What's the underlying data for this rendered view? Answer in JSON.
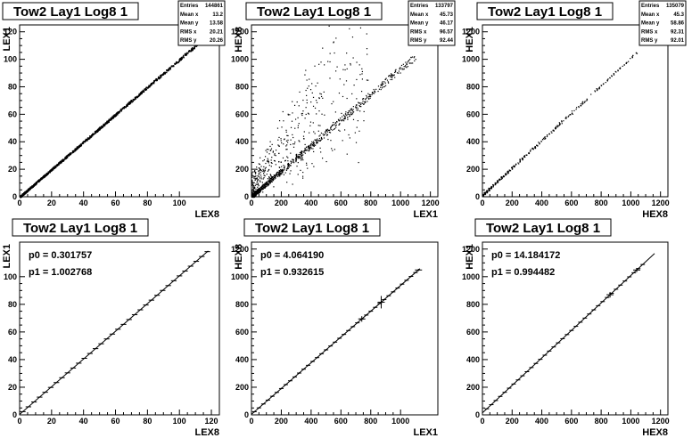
{
  "canvas": {
    "background": "#ffffff",
    "frame_color": "#000000",
    "title_bg": "#ffffff"
  },
  "chart_data": [
    {
      "type": "scatter",
      "title": "Tow2 Lay1 Log8 1",
      "xlabel": "LEX8",
      "ylabel": "LEX1",
      "xlim": [
        0,
        125
      ],
      "ylim": [
        0,
        125
      ],
      "xticks": [
        0,
        20,
        40,
        60,
        80,
        100
      ],
      "yticks": [
        0,
        20,
        40,
        60,
        80,
        100,
        120
      ],
      "stats": [
        {
          "label": "Entries",
          "value": "144861"
        },
        {
          "label": "Mean x",
          "value": "13.2"
        },
        {
          "label": "Mean y",
          "value": "13.58"
        },
        {
          "label": "RMS x",
          "value": "20.21"
        },
        {
          "label": "RMS y",
          "value": "20.26"
        }
      ],
      "distribution": {
        "slope": 1.0,
        "intercept": 0.3,
        "x_range": [
          0,
          115
        ],
        "spread": 0.6,
        "outlier_fraction": 0.0,
        "density": "dense-diagonal"
      }
    },
    {
      "type": "scatter",
      "title": "Tow2 Lay1 Log8 1",
      "xlabel": "LEX1",
      "ylabel": "HEX8",
      "xlim": [
        0,
        1250
      ],
      "ylim": [
        0,
        1250
      ],
      "xticks": [
        0,
        200,
        400,
        600,
        800,
        1000,
        1200
      ],
      "yticks": [
        0,
        200,
        400,
        600,
        800,
        1000,
        1200
      ],
      "stats": [
        {
          "label": "Entries",
          "value": "133797"
        },
        {
          "label": "Mean x",
          "value": "45.73"
        },
        {
          "label": "Mean y",
          "value": "46.17"
        },
        {
          "label": "RMS x",
          "value": "96.57"
        },
        {
          "label": "RMS y",
          "value": "92.44"
        }
      ],
      "distribution": {
        "slope": 0.93,
        "intercept": 4,
        "x_range": [
          0,
          1100
        ],
        "spread": 18,
        "outlier_fraction": 0.35,
        "density": "diagonal-with-scatter"
      }
    },
    {
      "type": "scatter",
      "title": "Tow2 Lay1 Log8 1",
      "xlabel": "HEX8",
      "ylabel": "HEX1",
      "xlim": [
        0,
        1250
      ],
      "ylim": [
        0,
        1250
      ],
      "xticks": [
        0,
        200,
        400,
        600,
        800,
        1000,
        1200
      ],
      "yticks": [
        0,
        200,
        400,
        600,
        800,
        1000,
        1200
      ],
      "stats": [
        {
          "label": "Entries",
          "value": "135079"
        },
        {
          "label": "Mean x",
          "value": "45.3"
        },
        {
          "label": "Mean y",
          "value": "58.86"
        },
        {
          "label": "RMS x",
          "value": "92.31"
        },
        {
          "label": "RMS y",
          "value": "92.01"
        }
      ],
      "distribution": {
        "slope": 1.0,
        "intercept": 14,
        "x_range": [
          0,
          1050
        ],
        "spread": 4,
        "outlier_fraction": 0.0,
        "density": "banded-diagonal"
      }
    },
    {
      "type": "line",
      "title": "Tow2 Lay1 Log8 1",
      "xlabel": "LEX8",
      "ylabel": "LEX1",
      "xlim": [
        0,
        125
      ],
      "ylim": [
        0,
        125
      ],
      "xticks": [
        0,
        20,
        40,
        60,
        80,
        100,
        120
      ],
      "yticks": [
        0,
        20,
        40,
        60,
        80,
        100
      ],
      "fit": {
        "p0_label": "p0 = 0.301757",
        "p1_label": "p1 = 1.002768",
        "p0": 0.301757,
        "p1": 1.002768,
        "x_range": [
          0,
          118
        ]
      },
      "profile": {
        "x_start": 2,
        "x_end": 118,
        "step": 3.5,
        "err": 0.3,
        "big_errors": []
      }
    },
    {
      "type": "line",
      "title": "Tow2 Lay1 Log8 1",
      "xlabel": "LEX1",
      "ylabel": "HEX8",
      "xlim": [
        0,
        1250
      ],
      "ylim": [
        0,
        1250
      ],
      "xticks": [
        0,
        200,
        400,
        600,
        800,
        1000
      ],
      "yticks": [
        0,
        200,
        400,
        600,
        800,
        1000,
        1200
      ],
      "fit": {
        "p0_label": "p0 = 4.064190",
        "p1_label": "p1 = 0.932615",
        "p0": 4.06419,
        "p1": 0.932615,
        "x_range": [
          0,
          1130
        ]
      },
      "profile": {
        "x_start": 20,
        "x_end": 1120,
        "step": 30,
        "err": 5,
        "big_errors": [
          [
            740,
            20
          ],
          [
            870,
            45
          ],
          [
            1120,
            8
          ]
        ]
      }
    },
    {
      "type": "line",
      "title": "Tow2 Lay1 Log8 1",
      "xlabel": "HEX8",
      "ylabel": "HEX1",
      "xlim": [
        0,
        1250
      ],
      "ylim": [
        0,
        1250
      ],
      "xticks": [
        0,
        200,
        400,
        600,
        800,
        1000,
        1200
      ],
      "yticks": [
        0,
        200,
        400,
        600,
        800,
        1000,
        1200
      ],
      "fit": {
        "p0_label": "p0 = 14.184172",
        "p1_label": "p1 = 0.994482",
        "p0": 14.184172,
        "p1": 0.994482,
        "x_range": [
          0,
          1160
        ]
      },
      "profile": {
        "x_start": 30,
        "x_end": 1100,
        "step": 30,
        "err": 4,
        "big_errors": [
          [
            860,
            20
          ],
          [
            1040,
            15
          ]
        ]
      }
    }
  ]
}
